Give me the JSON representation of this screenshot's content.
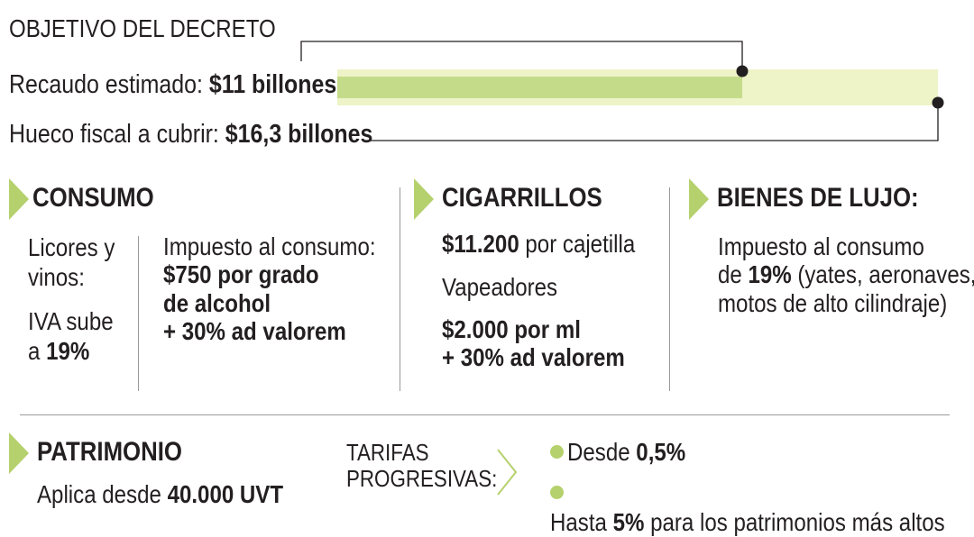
{
  "title": "OBJETIVO DEL DECRETO",
  "recaudo": {
    "label": "Recaudo estimado: ",
    "value": "$11 billones",
    "amount": 11
  },
  "hueco": {
    "label": "Hueco fiscal a cubrir: ",
    "value": "$16,3 billones",
    "amount": 16.3
  },
  "colors": {
    "accent": "#b5d16d",
    "bar_light": "#eef3c8",
    "bar_strong": "#c4dc8a",
    "text": "#231f20",
    "divider": "#9a9a9a"
  },
  "consumo": {
    "heading": "CONSUMO",
    "licores_l1": "Licores y",
    "licores_l2": "vinos:",
    "iva_l1": "IVA sube",
    "iva_pre": "a ",
    "iva_value": "19%",
    "impuesto_l1": "Impuesto al consumo:",
    "impuesto_l2": "$750 por grado",
    "impuesto_l3": "de alcohol",
    "impuesto_l4": "+ 30% ad valorem"
  },
  "cigarrillos": {
    "heading": "CIGARRILLOS",
    "precio_value": "$11.200",
    "precio_rest": " por cajetilla",
    "vapeadores": "Vapeadores",
    "vape_l1": "$2.000 por ml",
    "vape_l2": "+ 30% ad valorem"
  },
  "lujo": {
    "heading": "BIENES DE LUJO:",
    "l1": "Impuesto al consumo",
    "l2_pre": "de ",
    "l2_value": "19%",
    "l2_rest": " (yates, aeronaves,",
    "l3": "motos de alto cilindraje)"
  },
  "patrimonio": {
    "heading": "PATRIMONIO",
    "aplica_pre": "Aplica desde ",
    "aplica_value": "40.000 UVT",
    "tarifas_l1": "TARIFAS",
    "tarifas_l2": "PROGRESIVAS:",
    "b1_pre": "Desde ",
    "b1_value": "0,5%",
    "b2_pre": "Hasta ",
    "b2_value": "5%",
    "b2_rest": " para los patrimonios más altos"
  }
}
